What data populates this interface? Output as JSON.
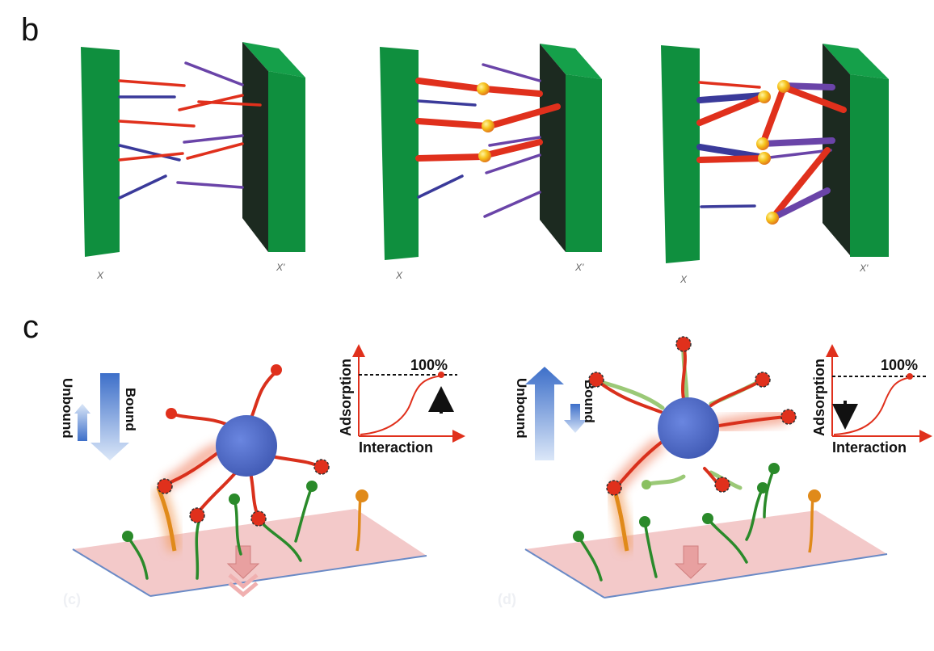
{
  "panel_b": {
    "letter": "b",
    "schemes": [
      {
        "left_wall_label": "X",
        "right_wall_label": "X'"
      },
      {
        "left_wall_label": "X",
        "right_wall_label": "X'"
      },
      {
        "left_wall_label": "X",
        "right_wall_label": "X'"
      }
    ]
  },
  "panel_c": {
    "letter": "c",
    "schemes": [
      {
        "unbound_label": "Unbound",
        "bound_label": "Bound",
        "graph_ylabel": "Adsorption",
        "graph_xlabel": "Interaction",
        "graph_level": "100%",
        "sub_label": "(c)"
      },
      {
        "unbound_label": "Unbound",
        "bound_label": "Bound",
        "graph_ylabel": "Adsorption",
        "graph_xlabel": "Interaction",
        "graph_level": "100%",
        "sub_label": "(d)"
      }
    ]
  },
  "colors": {
    "wall_front": "#0f8f3e",
    "wall_side": "#1c2a20",
    "red_ligand": "#e0301c",
    "blue_ligand": "#3a3a9a",
    "purple_ligand": "#6a44a8",
    "nanoparticle": "#4a66c6",
    "surface": "#f3c9c9",
    "receptor_green": "#2a8a2a",
    "receptor_orange": "#e08a1a"
  }
}
